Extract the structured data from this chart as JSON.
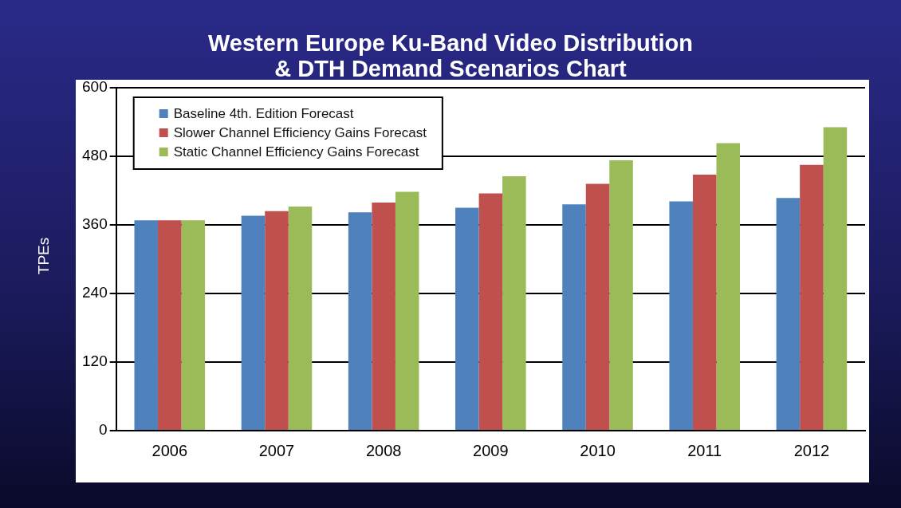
{
  "chart_data": {
    "type": "bar",
    "title": "Western Europe Ku-Band Video Distribution & DTH Demand Scenarios Chart",
    "ylabel": "TPEs",
    "categories": [
      "2006",
      "2007",
      "2008",
      "2009",
      "2010",
      "2011",
      "2012"
    ],
    "series": [
      {
        "name": "Baseline 4th. Edition Forecast",
        "color": "#4f81bd",
        "values": [
          368,
          376,
          382,
          390,
          396,
          401,
          407
        ]
      },
      {
        "name": "Slower Channel Efficiency Gains Forecast",
        "color": "#c0504d",
        "values": [
          368,
          384,
          399,
          415,
          432,
          448,
          465
        ]
      },
      {
        "name": "Static Channel Efficiency Gains Forecast",
        "color": "#9bbb59",
        "values": [
          368,
          392,
          418,
          445,
          473,
          503,
          531
        ]
      }
    ],
    "ylim": [
      0,
      600
    ],
    "yticks": [
      0,
      120,
      240,
      360,
      480,
      600
    ],
    "grid": "y",
    "legend": "top left"
  }
}
